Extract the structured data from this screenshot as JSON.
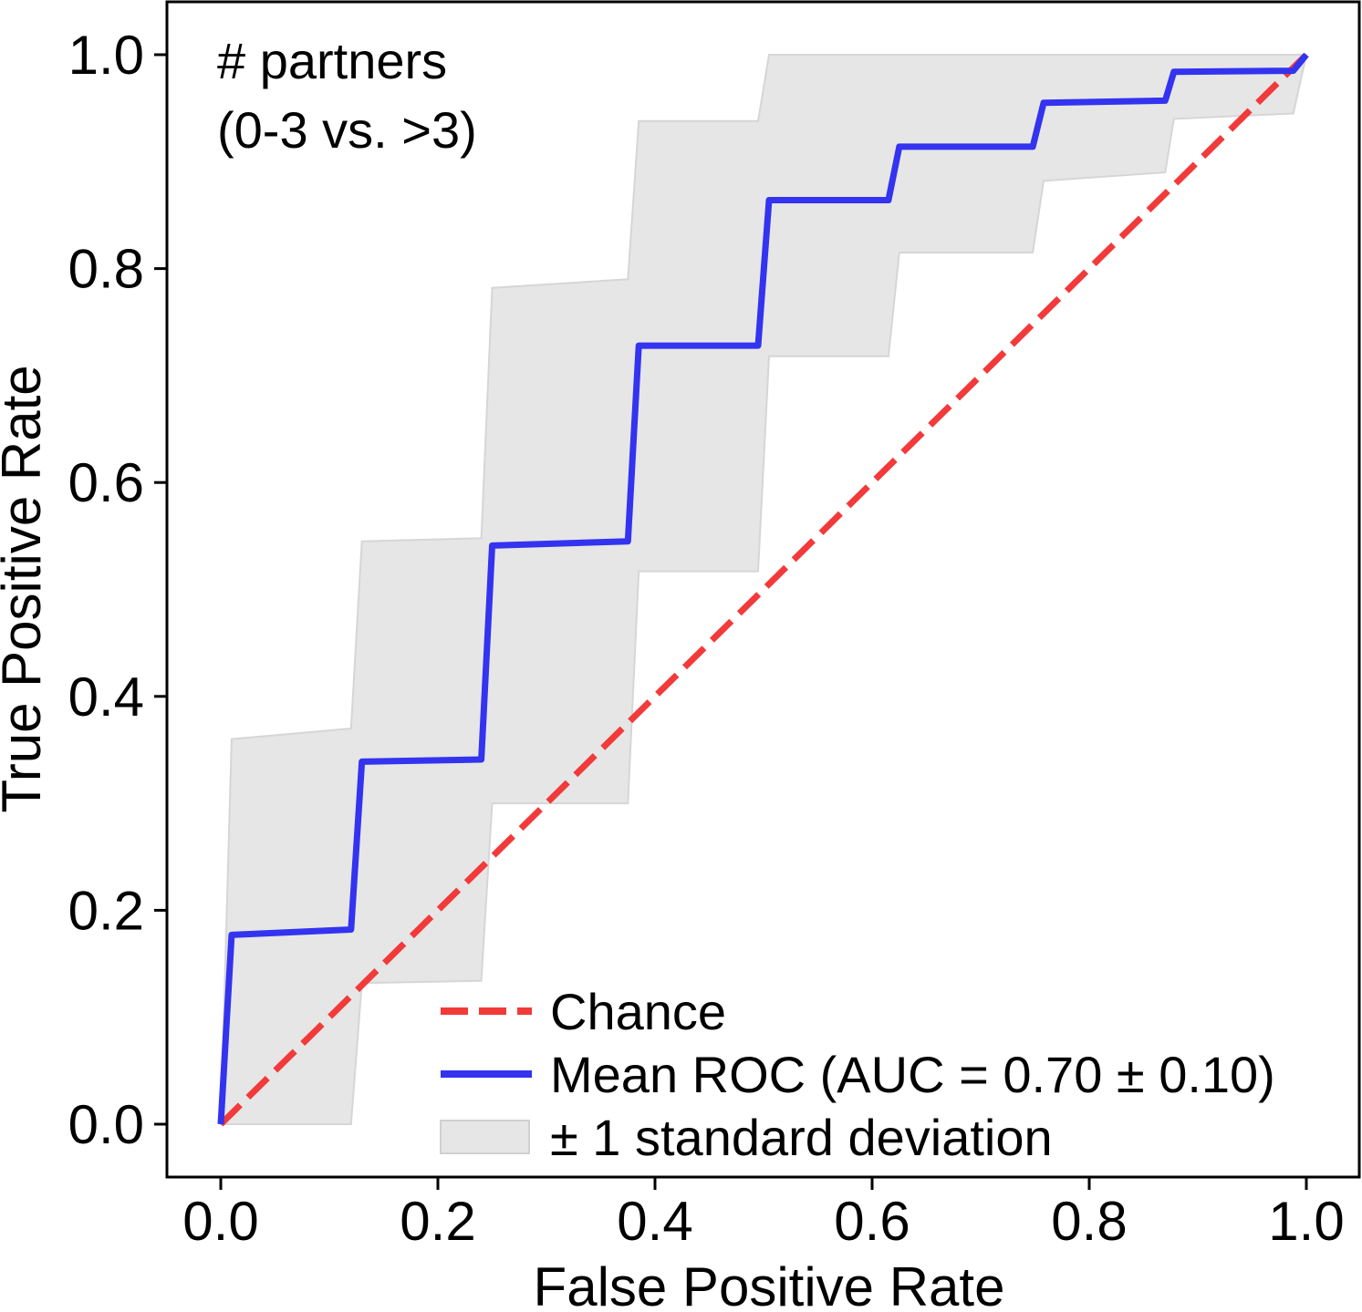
{
  "chart_data": {
    "type": "line",
    "title": "",
    "xlabel": "False Positive Rate",
    "ylabel": "True Positive Rate",
    "xlim": [
      -0.05,
      1.05
    ],
    "ylim": [
      -0.05,
      1.05
    ],
    "xticks": [
      0.0,
      0.2,
      0.4,
      0.6,
      0.8,
      1.0
    ],
    "yticks": [
      0.0,
      0.2,
      0.4,
      0.6,
      0.8,
      1.0
    ],
    "xtick_labels": [
      "0.0",
      "0.2",
      "0.4",
      "0.6",
      "0.8",
      "1.0"
    ],
    "ytick_labels": [
      "0.0",
      "0.2",
      "0.4",
      "0.6",
      "0.8",
      "1.0"
    ],
    "grid": false,
    "annotation": [
      "# partners",
      "(0-3 vs. >3)"
    ],
    "legend": {
      "placement": "lower-right",
      "entries": [
        {
          "label": "Chance",
          "style": "dashed-line",
          "color": "#f23a3a"
        },
        {
          "label": "Mean ROC (AUC = 0.70 ± 0.10)",
          "style": "solid-line",
          "color": "#3333f0"
        },
        {
          "label": "± 1 standard deviation",
          "style": "patch",
          "color": "#e6e6e6"
        }
      ]
    },
    "series": [
      {
        "name": "Chance",
        "color": "#f23a3a",
        "x": [
          0.0,
          1.0
        ],
        "y": [
          0.0,
          1.0
        ]
      },
      {
        "name": "Mean ROC (AUC = 0.70 ± 0.10)",
        "color": "#3333f0",
        "x": [
          0.0,
          0.01,
          0.12,
          0.13,
          0.24,
          0.25,
          0.375,
          0.385,
          0.495,
          0.505,
          0.615,
          0.625,
          0.748,
          0.758,
          0.87,
          0.878,
          0.988,
          1.0
        ],
        "y": [
          0.0,
          0.177,
          0.182,
          0.339,
          0.341,
          0.541,
          0.545,
          0.728,
          0.728,
          0.864,
          0.864,
          0.914,
          0.914,
          0.955,
          0.957,
          0.984,
          0.985,
          1.0
        ]
      }
    ],
    "band": {
      "name": "± 1 standard deviation",
      "color": "#e6e6e6",
      "x": [
        0.0,
        0.01,
        0.12,
        0.13,
        0.24,
        0.25,
        0.375,
        0.385,
        0.495,
        0.505,
        0.615,
        0.625,
        0.748,
        0.758,
        0.87,
        0.878,
        0.988,
        1.0
      ],
      "lower": [
        0.0,
        0.0,
        0.0,
        0.132,
        0.134,
        0.3,
        0.3,
        0.517,
        0.517,
        0.718,
        0.718,
        0.815,
        0.815,
        0.882,
        0.89,
        0.94,
        0.945,
        1.0
      ],
      "upper": [
        0.0,
        0.36,
        0.37,
        0.545,
        0.548,
        0.782,
        0.79,
        0.938,
        0.938,
        1.0,
        1.0,
        1.0,
        1.0,
        1.0,
        1.0,
        1.0,
        1.0,
        1.0
      ]
    }
  }
}
